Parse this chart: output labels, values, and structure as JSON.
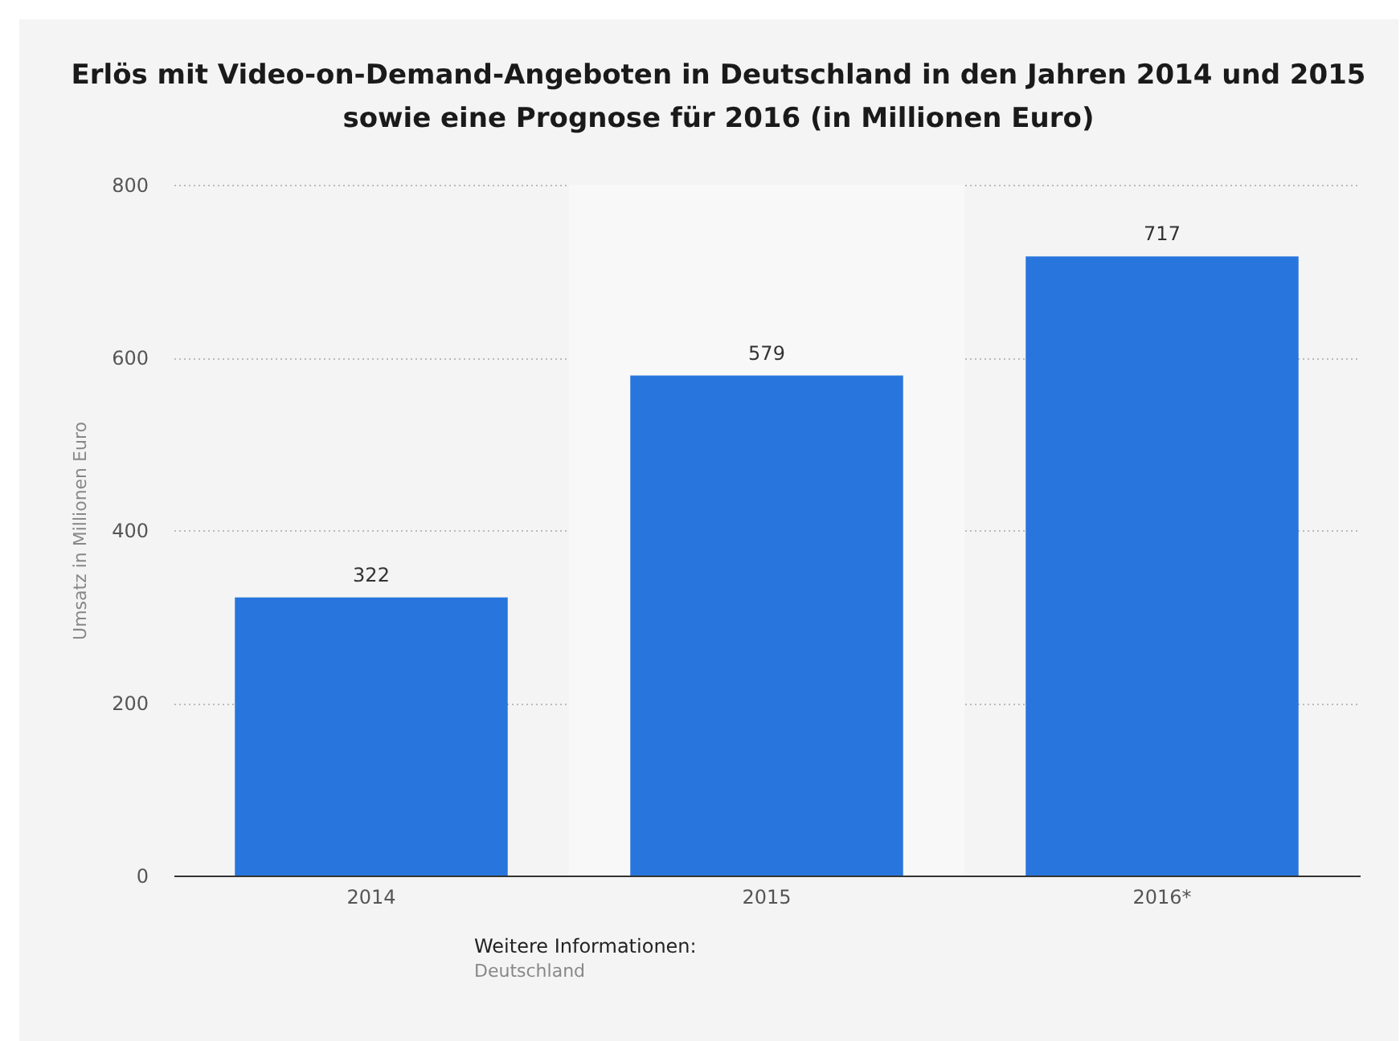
{
  "chart_data": {
    "type": "bar",
    "title": "Erlös mit Video-on-Demand-Angeboten in Deutschland in den Jahren 2014 und 2015 sowie eine Prognose für 2016 (in Millionen Euro)",
    "ylabel": "Umsatz in Millionen Euro",
    "categories": [
      "2014",
      "2015",
      "2016*"
    ],
    "values": [
      322,
      579,
      717
    ],
    "color": "#2876dd",
    "ylim": [
      0,
      800
    ],
    "yticks": [
      0,
      200,
      400,
      600,
      800
    ],
    "grid": "y",
    "data_labels": true,
    "bands": [
      {
        "axis": "x",
        "from": "2015",
        "to": "2015",
        "color": "#f8f8f8"
      }
    ],
    "annotations": [
      "Weitere Informationen:",
      "Deutschland"
    ]
  }
}
